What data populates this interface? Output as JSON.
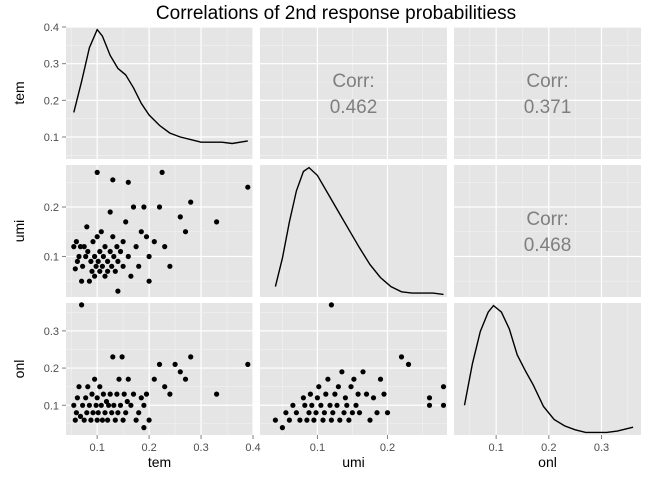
{
  "chart_data": {
    "type": "scatter",
    "title": "Correlations of 2nd response probabilitiess",
    "variables": [
      "tem",
      "umi",
      "onl"
    ],
    "axes": {
      "tem": {
        "range": [
          0.04,
          0.4
        ],
        "ticks": [
          0.1,
          0.2,
          0.3,
          0.4
        ],
        "tick_labels": [
          "0.1",
          "0.2",
          "0.3",
          "0.4"
        ],
        "density_ticks": [
          0.1,
          0.2,
          0.3,
          0.4
        ],
        "density_tick_labels": [
          "0.1",
          "0.2",
          "0.3",
          "0.4"
        ]
      },
      "umi": {
        "range": [
          0.018,
          0.285
        ],
        "ticks": [
          0.1,
          0.2
        ],
        "tick_labels": [
          "0.1",
          "0.2"
        ]
      },
      "onl": {
        "range": [
          0.02,
          0.375
        ],
        "ticks": [
          0.1,
          0.2,
          0.3
        ],
        "tick_labels": [
          "0.1",
          "0.2",
          "0.3"
        ]
      }
    },
    "density_y_range": [
      0,
      1.02
    ],
    "correlations": [
      {
        "row": "tem",
        "col": "umi",
        "label": "Corr:",
        "value": "0.462"
      },
      {
        "row": "tem",
        "col": "onl",
        "label": "Corr:",
        "value": "0.371"
      },
      {
        "row": "umi",
        "col": "onl",
        "label": "Corr:",
        "value": "0.468"
      }
    ],
    "densities": {
      "tem": [
        [
          0.055,
          0.36
        ],
        [
          0.07,
          0.6
        ],
        [
          0.085,
          0.86
        ],
        [
          0.1,
          1.0
        ],
        [
          0.11,
          0.95
        ],
        [
          0.125,
          0.8
        ],
        [
          0.14,
          0.7
        ],
        [
          0.155,
          0.65
        ],
        [
          0.17,
          0.55
        ],
        [
          0.185,
          0.43
        ],
        [
          0.2,
          0.34
        ],
        [
          0.22,
          0.26
        ],
        [
          0.24,
          0.2
        ],
        [
          0.26,
          0.17
        ],
        [
          0.28,
          0.15
        ],
        [
          0.3,
          0.13
        ],
        [
          0.32,
          0.13
        ],
        [
          0.34,
          0.13
        ],
        [
          0.36,
          0.12
        ],
        [
          0.39,
          0.14
        ]
      ],
      "umi": [
        [
          0.04,
          0.08
        ],
        [
          0.05,
          0.3
        ],
        [
          0.06,
          0.58
        ],
        [
          0.07,
          0.82
        ],
        [
          0.08,
          0.97
        ],
        [
          0.088,
          1.0
        ],
        [
          0.1,
          0.94
        ],
        [
          0.115,
          0.8
        ],
        [
          0.13,
          0.66
        ],
        [
          0.145,
          0.52
        ],
        [
          0.16,
          0.38
        ],
        [
          0.175,
          0.25
        ],
        [
          0.19,
          0.15
        ],
        [
          0.205,
          0.08
        ],
        [
          0.22,
          0.04
        ],
        [
          0.235,
          0.03
        ],
        [
          0.25,
          0.03
        ],
        [
          0.265,
          0.03
        ],
        [
          0.28,
          0.02
        ]
      ],
      "onl": [
        [
          0.04,
          0.23
        ],
        [
          0.055,
          0.55
        ],
        [
          0.07,
          0.8
        ],
        [
          0.085,
          0.95
        ],
        [
          0.095,
          1.0
        ],
        [
          0.11,
          0.95
        ],
        [
          0.125,
          0.82
        ],
        [
          0.14,
          0.62
        ],
        [
          0.155,
          0.5
        ],
        [
          0.17,
          0.39
        ],
        [
          0.19,
          0.22
        ],
        [
          0.21,
          0.12
        ],
        [
          0.23,
          0.07
        ],
        [
          0.25,
          0.04
        ],
        [
          0.27,
          0.02
        ],
        [
          0.29,
          0.02
        ],
        [
          0.31,
          0.02
        ],
        [
          0.33,
          0.03
        ],
        [
          0.36,
          0.06
        ]
      ]
    },
    "pairs": [
      {
        "x": "tem",
        "y": "umi",
        "points": [
          [
            0.055,
            0.12
          ],
          [
            0.058,
            0.075
          ],
          [
            0.06,
            0.13
          ],
          [
            0.062,
            0.09
          ],
          [
            0.065,
            0.1
          ],
          [
            0.068,
            0.12
          ],
          [
            0.07,
            0.05
          ],
          [
            0.072,
            0.08
          ],
          [
            0.075,
            0.12
          ],
          [
            0.078,
            0.1
          ],
          [
            0.08,
            0.16
          ],
          [
            0.082,
            0.11
          ],
          [
            0.085,
            0.05
          ],
          [
            0.088,
            0.09
          ],
          [
            0.09,
            0.07
          ],
          [
            0.092,
            0.13
          ],
          [
            0.095,
            0.06
          ],
          [
            0.095,
            0.1
          ],
          [
            0.098,
            0.08
          ],
          [
            0.1,
            0.14
          ],
          [
            0.1,
            0.27
          ],
          [
            0.102,
            0.09
          ],
          [
            0.105,
            0.07
          ],
          [
            0.105,
            0.11
          ],
          [
            0.108,
            0.15
          ],
          [
            0.11,
            0.08
          ],
          [
            0.112,
            0.1
          ],
          [
            0.115,
            0.06
          ],
          [
            0.115,
            0.12
          ],
          [
            0.12,
            0.09
          ],
          [
            0.12,
            0.07
          ],
          [
            0.125,
            0.19
          ],
          [
            0.125,
            0.11
          ],
          [
            0.128,
            0.08
          ],
          [
            0.13,
            0.255
          ],
          [
            0.13,
            0.14
          ],
          [
            0.132,
            0.1
          ],
          [
            0.135,
            0.07
          ],
          [
            0.138,
            0.12
          ],
          [
            0.14,
            0.09
          ],
          [
            0.14,
            0.03
          ],
          [
            0.145,
            0.11
          ],
          [
            0.15,
            0.13
          ],
          [
            0.15,
            0.08
          ],
          [
            0.155,
            0.17
          ],
          [
            0.16,
            0.25
          ],
          [
            0.16,
            0.1
          ],
          [
            0.165,
            0.06
          ],
          [
            0.17,
            0.2
          ],
          [
            0.175,
            0.12
          ],
          [
            0.18,
            0.08
          ],
          [
            0.185,
            0.15
          ],
          [
            0.19,
            0.2
          ],
          [
            0.195,
            0.14
          ],
          [
            0.2,
            0.05
          ],
          [
            0.2,
            0.1
          ],
          [
            0.21,
            0.13
          ],
          [
            0.22,
            0.2
          ],
          [
            0.225,
            0.27
          ],
          [
            0.23,
            0.12
          ],
          [
            0.24,
            0.08
          ],
          [
            0.26,
            0.18
          ],
          [
            0.27,
            0.15
          ],
          [
            0.28,
            0.21
          ],
          [
            0.33,
            0.17
          ],
          [
            0.39,
            0.24
          ]
        ]
      },
      {
        "x": "tem",
        "y": "onl",
        "points": [
          [
            0.055,
            0.1
          ],
          [
            0.058,
            0.06
          ],
          [
            0.06,
            0.08
          ],
          [
            0.062,
            0.12
          ],
          [
            0.065,
            0.15
          ],
          [
            0.068,
            0.07
          ],
          [
            0.07,
            0.37
          ],
          [
            0.072,
            0.1
          ],
          [
            0.075,
            0.06
          ],
          [
            0.078,
            0.12
          ],
          [
            0.08,
            0.08
          ],
          [
            0.082,
            0.15
          ],
          [
            0.085,
            0.1
          ],
          [
            0.088,
            0.06
          ],
          [
            0.09,
            0.13
          ],
          [
            0.092,
            0.08
          ],
          [
            0.095,
            0.17
          ],
          [
            0.098,
            0.1
          ],
          [
            0.1,
            0.06
          ],
          [
            0.1,
            0.12
          ],
          [
            0.102,
            0.08
          ],
          [
            0.105,
            0.15
          ],
          [
            0.108,
            0.1
          ],
          [
            0.11,
            0.06
          ],
          [
            0.112,
            0.13
          ],
          [
            0.115,
            0.08
          ],
          [
            0.118,
            0.11
          ],
          [
            0.12,
            0.06
          ],
          [
            0.122,
            0.1
          ],
          [
            0.125,
            0.13
          ],
          [
            0.128,
            0.08
          ],
          [
            0.13,
            0.23
          ],
          [
            0.132,
            0.1
          ],
          [
            0.135,
            0.06
          ],
          [
            0.138,
            0.13
          ],
          [
            0.14,
            0.08
          ],
          [
            0.142,
            0.17
          ],
          [
            0.145,
            0.1
          ],
          [
            0.148,
            0.23
          ],
          [
            0.15,
            0.06
          ],
          [
            0.152,
            0.13
          ],
          [
            0.155,
            0.08
          ],
          [
            0.158,
            0.11
          ],
          [
            0.16,
            0.17
          ],
          [
            0.165,
            0.1
          ],
          [
            0.17,
            0.13
          ],
          [
            0.175,
            0.06
          ],
          [
            0.18,
            0.08
          ],
          [
            0.185,
            0.12
          ],
          [
            0.19,
            0.04
          ],
          [
            0.19,
            0.1
          ],
          [
            0.195,
            0.13
          ],
          [
            0.2,
            0.06
          ],
          [
            0.21,
            0.17
          ],
          [
            0.22,
            0.21
          ],
          [
            0.23,
            0.15
          ],
          [
            0.24,
            0.13
          ],
          [
            0.25,
            0.21
          ],
          [
            0.26,
            0.19
          ],
          [
            0.27,
            0.17
          ],
          [
            0.28,
            0.23
          ],
          [
            0.33,
            0.13
          ],
          [
            0.39,
            0.21
          ]
        ]
      },
      {
        "x": "umi",
        "y": "onl",
        "points": [
          [
            0.04,
            0.06
          ],
          [
            0.05,
            0.04
          ],
          [
            0.055,
            0.08
          ],
          [
            0.06,
            0.06
          ],
          [
            0.065,
            0.1
          ],
          [
            0.07,
            0.08
          ],
          [
            0.075,
            0.06
          ],
          [
            0.08,
            0.12
          ],
          [
            0.082,
            0.1
          ],
          [
            0.085,
            0.06
          ],
          [
            0.088,
            0.08
          ],
          [
            0.09,
            0.13
          ],
          [
            0.092,
            0.1
          ],
          [
            0.095,
            0.06
          ],
          [
            0.098,
            0.08
          ],
          [
            0.1,
            0.12
          ],
          [
            0.102,
            0.15
          ],
          [
            0.105,
            0.1
          ],
          [
            0.108,
            0.06
          ],
          [
            0.11,
            0.08
          ],
          [
            0.112,
            0.13
          ],
          [
            0.115,
            0.17
          ],
          [
            0.118,
            0.1
          ],
          [
            0.12,
            0.37
          ],
          [
            0.12,
            0.06
          ],
          [
            0.122,
            0.08
          ],
          [
            0.125,
            0.13
          ],
          [
            0.128,
            0.1
          ],
          [
            0.13,
            0.15
          ],
          [
            0.132,
            0.06
          ],
          [
            0.135,
            0.19
          ],
          [
            0.138,
            0.08
          ],
          [
            0.14,
            0.12
          ],
          [
            0.142,
            0.1
          ],
          [
            0.145,
            0.06
          ],
          [
            0.148,
            0.15
          ],
          [
            0.15,
            0.08
          ],
          [
            0.152,
            0.17
          ],
          [
            0.155,
            0.1
          ],
          [
            0.158,
            0.13
          ],
          [
            0.16,
            0.08
          ],
          [
            0.165,
            0.19
          ],
          [
            0.17,
            0.13
          ],
          [
            0.175,
            0.06
          ],
          [
            0.18,
            0.12
          ],
          [
            0.185,
            0.08
          ],
          [
            0.19,
            0.17
          ],
          [
            0.195,
            0.13
          ],
          [
            0.2,
            0.08
          ],
          [
            0.22,
            0.23
          ],
          [
            0.23,
            0.21
          ],
          [
            0.26,
            0.1
          ],
          [
            0.26,
            0.12
          ],
          [
            0.28,
            0.15
          ],
          [
            0.28,
            0.1
          ]
        ]
      }
    ]
  }
}
